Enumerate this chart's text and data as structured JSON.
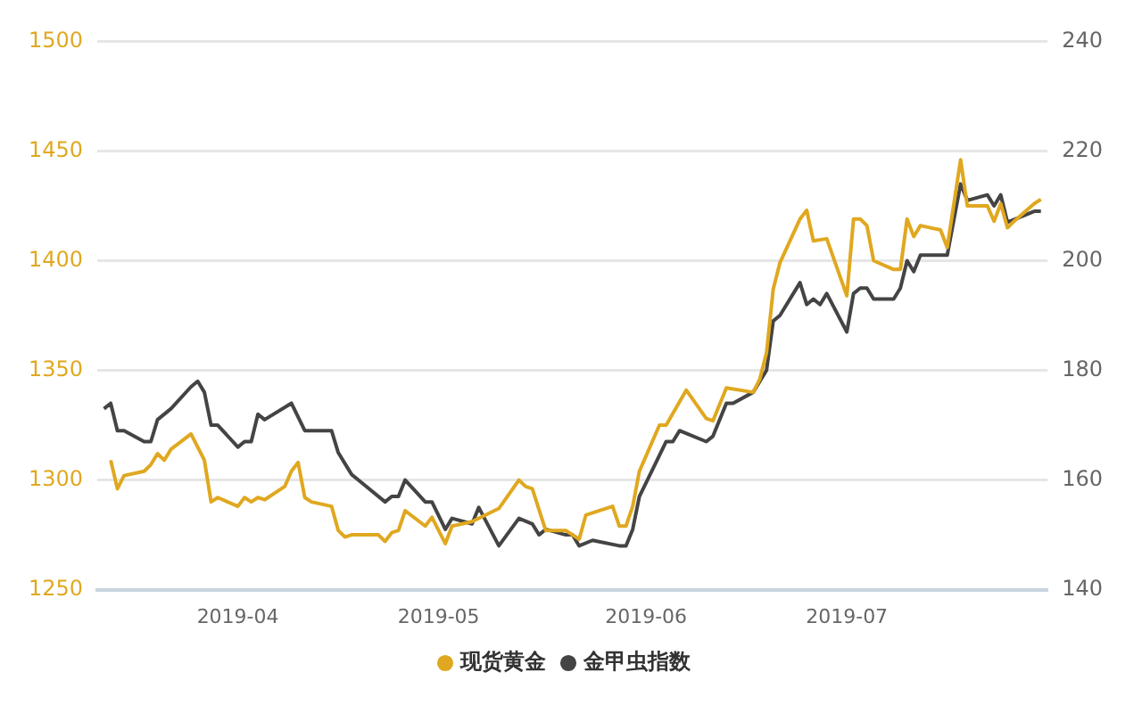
{
  "chart_data": {
    "type": "line",
    "xlim": [
      "2019-03-11",
      "2019-07-31"
    ],
    "xticks": [
      {
        "value": "2019-04-01",
        "label": "2019-04"
      },
      {
        "value": "2019-05-01",
        "label": "2019-05"
      },
      {
        "value": "2019-06-01",
        "label": "2019-06"
      },
      {
        "value": "2019-07-01",
        "label": "2019-07"
      }
    ],
    "ylim": [
      1250,
      1500
    ],
    "yticks": [
      1250,
      1300,
      1350,
      1400,
      1450,
      1500
    ],
    "y2lim": [
      140,
      240
    ],
    "y2ticks": [
      140,
      160,
      180,
      200,
      220,
      240
    ],
    "grid": "y",
    "legend": "bottom",
    "marker": "none",
    "line_style": "solid",
    "series": [
      {
        "name": "现货黄金",
        "color": "#e0a820",
        "x": [
          "2019-03-13",
          "2019-03-14",
          "2019-03-15",
          "2019-03-18",
          "2019-03-19",
          "2019-03-20",
          "2019-03-21",
          "2019-03-22",
          "2019-03-25",
          "2019-03-27",
          "2019-03-28",
          "2019-03-29",
          "2019-04-01",
          "2019-04-02",
          "2019-04-03",
          "2019-04-04",
          "2019-04-05",
          "2019-04-08",
          "2019-04-09",
          "2019-04-10",
          "2019-04-11",
          "2019-04-12",
          "2019-04-15",
          "2019-04-16",
          "2019-04-17",
          "2019-04-18",
          "2019-04-22",
          "2019-04-23",
          "2019-04-24",
          "2019-04-25",
          "2019-04-26",
          "2019-04-29",
          "2019-04-30",
          "2019-05-02",
          "2019-05-03",
          "2019-05-06",
          "2019-05-10",
          "2019-05-13",
          "2019-05-14",
          "2019-05-15",
          "2019-05-17",
          "2019-05-20",
          "2019-05-21",
          "2019-05-22",
          "2019-05-23",
          "2019-05-27",
          "2019-05-28",
          "2019-05-29",
          "2019-05-30",
          "2019-05-31",
          "2019-06-03",
          "2019-06-04",
          "2019-06-07",
          "2019-06-10",
          "2019-06-11",
          "2019-06-13",
          "2019-06-17",
          "2019-06-18",
          "2019-06-19",
          "2019-06-20",
          "2019-06-21",
          "2019-06-24",
          "2019-06-25",
          "2019-06-26",
          "2019-06-28",
          "2019-07-01",
          "2019-07-02",
          "2019-07-03",
          "2019-07-04",
          "2019-07-05",
          "2019-07-08",
          "2019-07-09",
          "2019-07-10",
          "2019-07-11",
          "2019-07-12",
          "2019-07-15",
          "2019-07-16",
          "2019-07-18",
          "2019-07-19",
          "2019-07-22",
          "2019-07-23",
          "2019-07-24",
          "2019-07-25",
          "2019-07-26",
          "2019-07-29",
          "2019-07-30"
        ],
        "values": [
          1309,
          1296,
          1302,
          1304,
          1307,
          1312,
          1309,
          1314,
          1321,
          1309,
          1290,
          1292,
          1288,
          1292,
          1290,
          1292,
          1291,
          1297,
          1304,
          1308,
          1292,
          1290,
          1288,
          1277,
          1274,
          1275,
          1275,
          1272,
          1276,
          1277,
          1286,
          1279,
          1283,
          1271,
          1279,
          1281,
          1287,
          1300,
          1297,
          1296,
          1277,
          1277,
          1275,
          1273,
          1284,
          1288,
          1279,
          1279,
          1288,
          1304,
          1325,
          1325,
          1341,
          1328,
          1327,
          1342,
          1340,
          1346,
          1358,
          1387,
          1399,
          1419,
          1423,
          1409,
          1410,
          1384,
          1419,
          1419,
          1416,
          1400,
          1396,
          1396,
          1419,
          1411,
          1416,
          1414,
          1406,
          1446,
          1425,
          1425,
          1418,
          1426,
          1415,
          1418,
          1426,
          1428
        ]
      },
      {
        "name": "金甲虫指数",
        "color": "#444444",
        "axis": "y2",
        "x": [
          "2019-03-12",
          "2019-03-13",
          "2019-03-14",
          "2019-03-15",
          "2019-03-18",
          "2019-03-19",
          "2019-03-20",
          "2019-03-22",
          "2019-03-25",
          "2019-03-26",
          "2019-03-27",
          "2019-03-28",
          "2019-03-29",
          "2019-04-01",
          "2019-04-02",
          "2019-04-03",
          "2019-04-04",
          "2019-04-05",
          "2019-04-09",
          "2019-04-11",
          "2019-04-15",
          "2019-04-16",
          "2019-04-17",
          "2019-04-18",
          "2019-04-19",
          "2019-04-23",
          "2019-04-24",
          "2019-04-25",
          "2019-04-26",
          "2019-04-29",
          "2019-04-30",
          "2019-05-02",
          "2019-05-03",
          "2019-05-06",
          "2019-05-07",
          "2019-05-10",
          "2019-05-13",
          "2019-05-15",
          "2019-05-16",
          "2019-05-17",
          "2019-05-20",
          "2019-05-21",
          "2019-05-22",
          "2019-05-24",
          "2019-05-28",
          "2019-05-29",
          "2019-05-30",
          "2019-05-31",
          "2019-06-04",
          "2019-06-05",
          "2019-06-06",
          "2019-06-10",
          "2019-06-11",
          "2019-06-13",
          "2019-06-14",
          "2019-06-17",
          "2019-06-19",
          "2019-06-20",
          "2019-06-21",
          "2019-06-24",
          "2019-06-25",
          "2019-06-26",
          "2019-06-27",
          "2019-06-28",
          "2019-07-01",
          "2019-07-02",
          "2019-07-03",
          "2019-07-04",
          "2019-07-05",
          "2019-07-08",
          "2019-07-09",
          "2019-07-10",
          "2019-07-11",
          "2019-07-12",
          "2019-07-15",
          "2019-07-16",
          "2019-07-18",
          "2019-07-19",
          "2019-07-22",
          "2019-07-23",
          "2019-07-24",
          "2019-07-25",
          "2019-07-29",
          "2019-07-30"
        ],
        "values": [
          173,
          174,
          169,
          169,
          167,
          167,
          171,
          173,
          177,
          178,
          176,
          170,
          170,
          166,
          167,
          167,
          172,
          171,
          174,
          169,
          169,
          165,
          163,
          161,
          160,
          156,
          157,
          157,
          160,
          156,
          156,
          151,
          153,
          152,
          155,
          148,
          153,
          152,
          150,
          151,
          150,
          150,
          148,
          149,
          148,
          148,
          151,
          157,
          167,
          167,
          169,
          167,
          168,
          174,
          174,
          176,
          180,
          189,
          190,
          196,
          192,
          193,
          192,
          194,
          187,
          194,
          195,
          195,
          193,
          193,
          195,
          200,
          198,
          201,
          201,
          201,
          214,
          211,
          212,
          210,
          212,
          207,
          209,
          209
        ]
      }
    ]
  }
}
